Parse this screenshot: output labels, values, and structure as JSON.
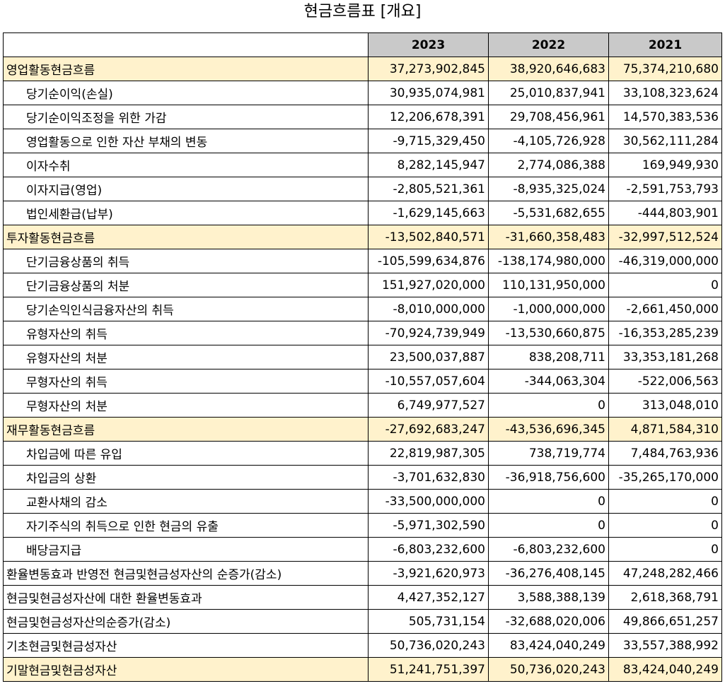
{
  "title": "현금흐름표 [개요]",
  "columns": [
    "",
    "2023",
    "2022",
    "2021"
  ],
  "rows": [
    {
      "label": "영업활동현금흐름",
      "v2023": "37,273,902,845",
      "v2022": "38,920,646,683",
      "v2021": "75,374,210,680",
      "highlight": true,
      "indent": false
    },
    {
      "label": "당기순이익(손실)",
      "v2023": "30,935,074,981",
      "v2022": "25,010,837,941",
      "v2021": "33,108,323,624",
      "highlight": false,
      "indent": true
    },
    {
      "label": "당기순이익조정을 위한 가감",
      "v2023": "12,206,678,391",
      "v2022": "29,708,456,961",
      "v2021": "14,570,383,536",
      "highlight": false,
      "indent": true
    },
    {
      "label": "영업활동으로 인한 자산 부채의 변동",
      "v2023": "-9,715,329,450",
      "v2022": "-4,105,726,928",
      "v2021": "30,562,111,284",
      "highlight": false,
      "indent": true
    },
    {
      "label": "이자수취",
      "v2023": "8,282,145,947",
      "v2022": "2,774,086,388",
      "v2021": "169,949,930",
      "highlight": false,
      "indent": true
    },
    {
      "label": "이자지급(영업)",
      "v2023": "-2,805,521,361",
      "v2022": "-8,935,325,024",
      "v2021": "-2,591,753,793",
      "highlight": false,
      "indent": true
    },
    {
      "label": "법인세환급(납부)",
      "v2023": "-1,629,145,663",
      "v2022": "-5,531,682,655",
      "v2021": "-444,803,901",
      "highlight": false,
      "indent": true
    },
    {
      "label": "투자활동현금흐름",
      "v2023": "-13,502,840,571",
      "v2022": "-31,660,358,483",
      "v2021": "-32,997,512,524",
      "highlight": true,
      "indent": false
    },
    {
      "label": "단기금융상품의 취득",
      "v2023": "-105,599,634,876",
      "v2022": "-138,174,980,000",
      "v2021": "-46,319,000,000",
      "highlight": false,
      "indent": true
    },
    {
      "label": "단기금융상품의 처분",
      "v2023": "151,927,020,000",
      "v2022": "110,131,950,000",
      "v2021": "0",
      "highlight": false,
      "indent": true
    },
    {
      "label": "당기손익인식금융자산의 취득",
      "v2023": "-8,010,000,000",
      "v2022": "-1,000,000,000",
      "v2021": "-2,661,450,000",
      "highlight": false,
      "indent": true
    },
    {
      "label": "유형자산의 취득",
      "v2023": "-70,924,739,949",
      "v2022": "-13,530,660,875",
      "v2021": "-16,353,285,239",
      "highlight": false,
      "indent": true
    },
    {
      "label": "유형자산의 처분",
      "v2023": "23,500,037,887",
      "v2022": "838,208,711",
      "v2021": "33,353,181,268",
      "highlight": false,
      "indent": true
    },
    {
      "label": "무형자산의 취득",
      "v2023": "-10,557,057,604",
      "v2022": "-344,063,304",
      "v2021": "-522,006,563",
      "highlight": false,
      "indent": true
    },
    {
      "label": "무형자산의 처분",
      "v2023": "6,749,977,527",
      "v2022": "0",
      "v2021": "313,048,010",
      "highlight": false,
      "indent": true
    },
    {
      "label": "재무활동현금흐름",
      "v2023": "-27,692,683,247",
      "v2022": "-43,536,696,345",
      "v2021": "4,871,584,310",
      "highlight": true,
      "indent": false
    },
    {
      "label": "차입금에 따른 유입",
      "v2023": "22,819,987,305",
      "v2022": "738,719,774",
      "v2021": "7,484,763,936",
      "highlight": false,
      "indent": true
    },
    {
      "label": "차입금의 상환",
      "v2023": "-3,701,632,830",
      "v2022": "-36,918,756,600",
      "v2021": "-35,265,170,000",
      "highlight": false,
      "indent": true
    },
    {
      "label": "교환사채의 감소",
      "v2023": "-33,500,000,000",
      "v2022": "0",
      "v2021": "0",
      "highlight": false,
      "indent": true
    },
    {
      "label": "자기주식의 취득으로 인한 현금의 유출",
      "v2023": "-5,971,302,590",
      "v2022": "0",
      "v2021": "0",
      "highlight": false,
      "indent": true
    },
    {
      "label": "배당금지급",
      "v2023": "-6,803,232,600",
      "v2022": "-6,803,232,600",
      "v2021": "0",
      "highlight": false,
      "indent": true
    },
    {
      "label": "환율변동효과 반영전 현금및현금성자산의 순증가(감소)",
      "v2023": "-3,921,620,973",
      "v2022": "-36,276,408,145",
      "v2021": "47,248,282,466",
      "highlight": false,
      "indent": false
    },
    {
      "label": "현금및현금성자산에 대한 환율변동효과",
      "v2023": "4,427,352,127",
      "v2022": "3,588,388,139",
      "v2021": "2,618,368,791",
      "highlight": false,
      "indent": false
    },
    {
      "label": "현금및현금성자산의순증가(감소)",
      "v2023": "505,731,154",
      "v2022": "-32,688,020,006",
      "v2021": "49,866,651,257",
      "highlight": false,
      "indent": false
    },
    {
      "label": "기초현금및현금성자산",
      "v2023": "50,736,020,243",
      "v2022": "83,424,040,249",
      "v2021": "33,557,388,992",
      "highlight": false,
      "indent": false
    },
    {
      "label": "기말현금및현금성자산",
      "v2023": "51,241,751,397",
      "v2022": "50,736,020,243",
      "v2021": "83,424,040,249",
      "highlight": true,
      "indent": false
    }
  ]
}
